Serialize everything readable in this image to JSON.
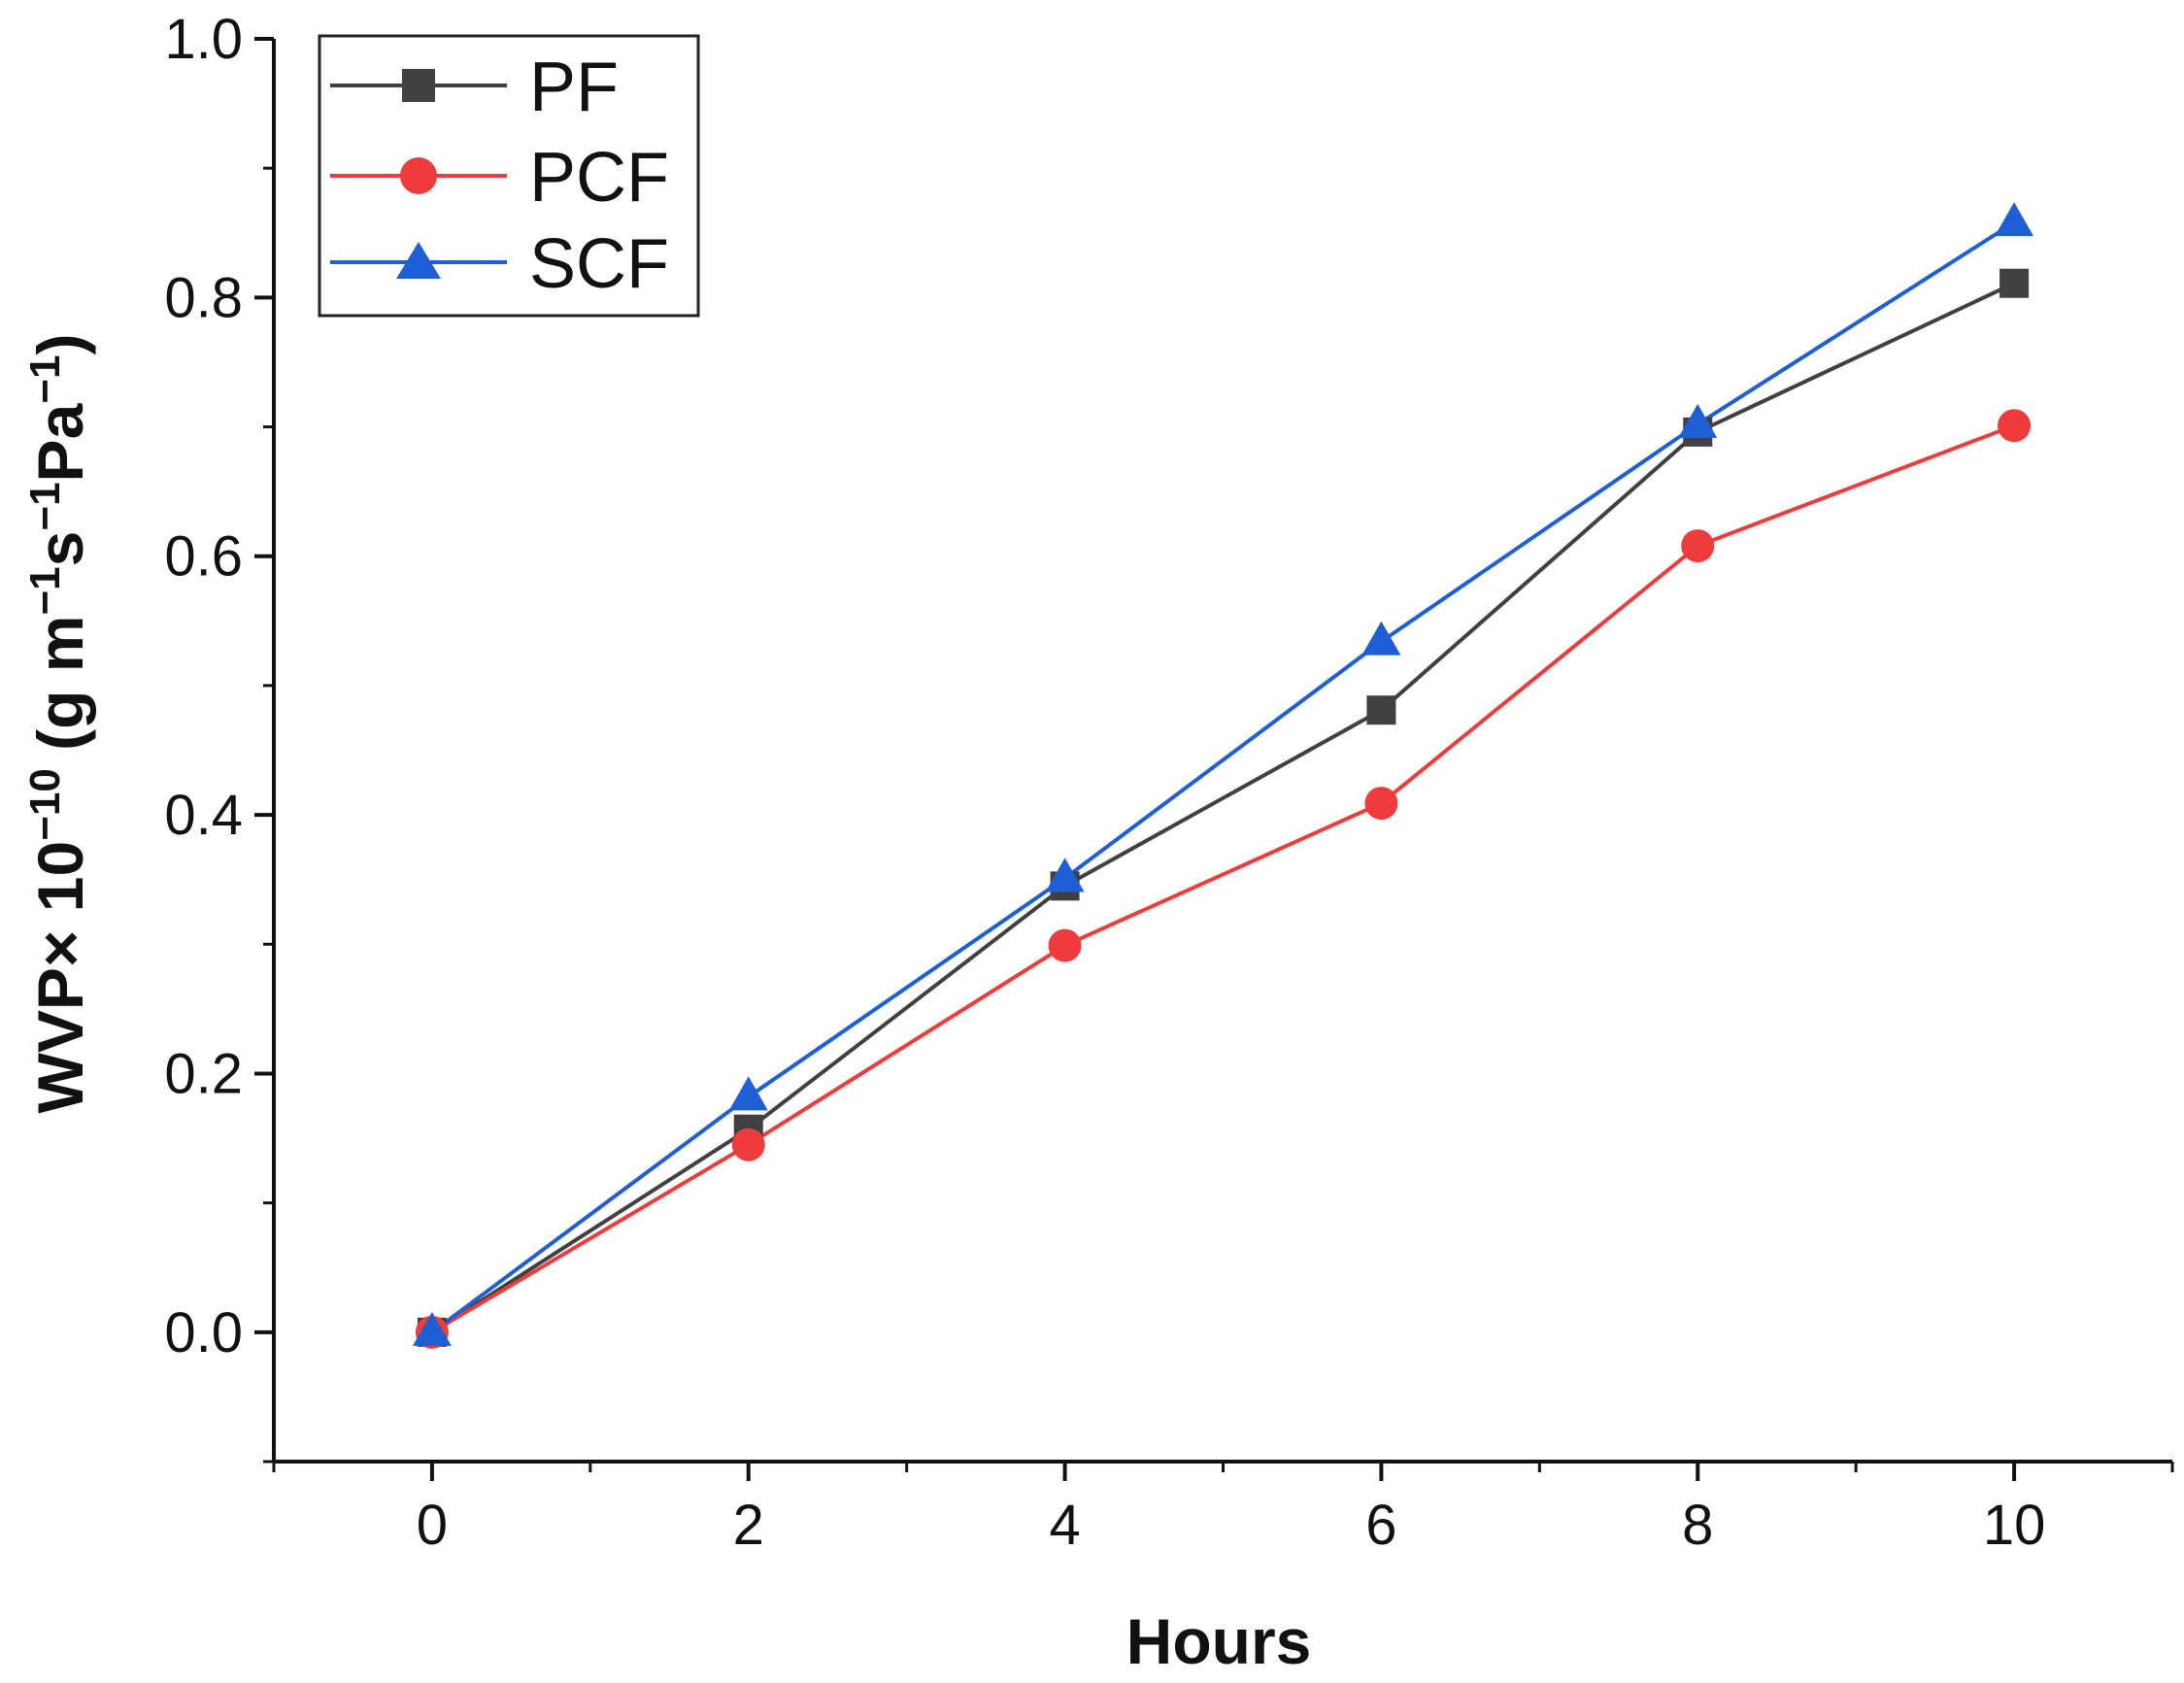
{
  "chart_data": {
    "type": "line",
    "title": "",
    "xlabel": "Hours",
    "ylabel_parts": {
      "base": "WVP× 10",
      "exp1": "−10",
      "unit_open": " (g m",
      "exp2": "−1",
      "s": "s",
      "exp3": "−1",
      "pa": "Pa",
      "exp4": "−1",
      "close": ")"
    },
    "xlim": [
      -1,
      11
    ],
    "ylim": [
      -0.1,
      1.0
    ],
    "xticks": [
      0,
      2,
      4,
      6,
      8,
      10
    ],
    "xtick_labels": [
      "0",
      "2",
      "4",
      "6",
      "8",
      "10"
    ],
    "yticks": [
      0.0,
      0.2,
      0.4,
      0.6,
      0.8,
      1.0
    ],
    "ytick_labels": [
      "0.0",
      "0.2",
      "0.4",
      "0.6",
      "0.8",
      "1.0"
    ],
    "grid": false,
    "legend_position": "top-left",
    "x": [
      0,
      2,
      4,
      6,
      8,
      10
    ],
    "series": [
      {
        "name": "PF",
        "color": "#404040",
        "marker": "square",
        "values": [
          0.0,
          0.157,
          0.345,
          0.481,
          0.696,
          0.811
        ]
      },
      {
        "name": "PCF",
        "color": "#ef3b3b",
        "marker": "circle",
        "values": [
          0.0,
          0.145,
          0.299,
          0.409,
          0.608,
          0.701
        ]
      },
      {
        "name": "SCF",
        "color": "#1f5fd6",
        "marker": "triangle",
        "values": [
          0.0,
          0.182,
          0.351,
          0.534,
          0.702,
          0.858
        ]
      }
    ]
  }
}
